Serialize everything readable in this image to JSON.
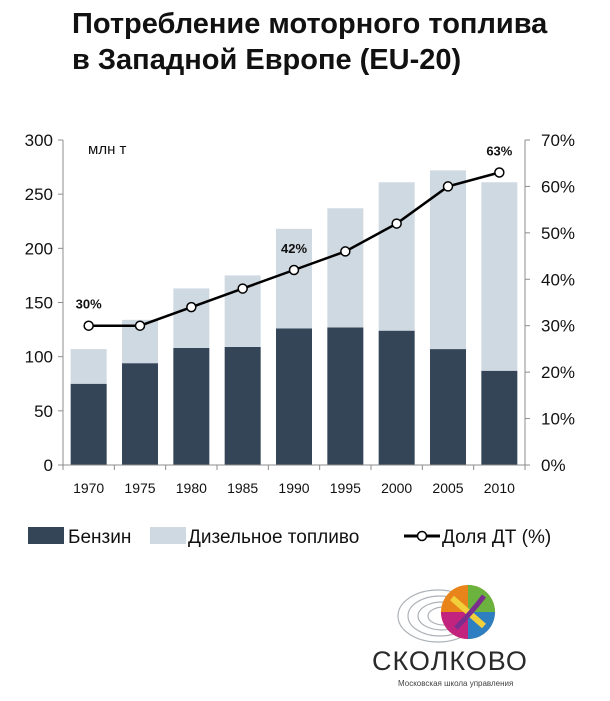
{
  "title_line1": "Потребление моторного топлива",
  "title_line2": "в Западной Европе (EU-20)",
  "logo": {
    "name": "СКОЛКОВО",
    "subtitle": "Московская школа управления"
  },
  "chart_data": {
    "type": "bar",
    "stacked": true,
    "unit_label": "млн т",
    "categories": [
      "1970",
      "1975",
      "1980",
      "1985",
      "1990",
      "1995",
      "2000",
      "2005",
      "2010"
    ],
    "series": [
      {
        "name": "Бензин",
        "values": [
          75,
          94,
          108,
          109,
          126,
          127,
          124,
          107,
          87
        ],
        "color": "#334556"
      },
      {
        "name": "Дизельное топливо",
        "values": [
          32,
          40,
          55,
          66,
          92,
          110,
          137,
          165,
          174
        ],
        "color": "#cfd9e2"
      }
    ],
    "line_series": {
      "name": "Доля ДТ (%)",
      "values": [
        30,
        30,
        34,
        38,
        42,
        46,
        52,
        60,
        63
      ],
      "axis": "right",
      "color": "#000000"
    },
    "point_labels": [
      {
        "category": "1970",
        "text": "30%"
      },
      {
        "category": "1990",
        "text": "42%"
      },
      {
        "category": "2010",
        "text": "63%"
      }
    ],
    "y_left": {
      "min": 0,
      "max": 300,
      "ticks": [
        "0",
        "50",
        "100",
        "150",
        "200",
        "250",
        "300"
      ]
    },
    "y_right": {
      "min": 0,
      "max": 70,
      "ticks": [
        "0%",
        "10%",
        "20%",
        "30%",
        "40%",
        "50%",
        "60%",
        "70%"
      ]
    },
    "legend_position": "bottom"
  }
}
